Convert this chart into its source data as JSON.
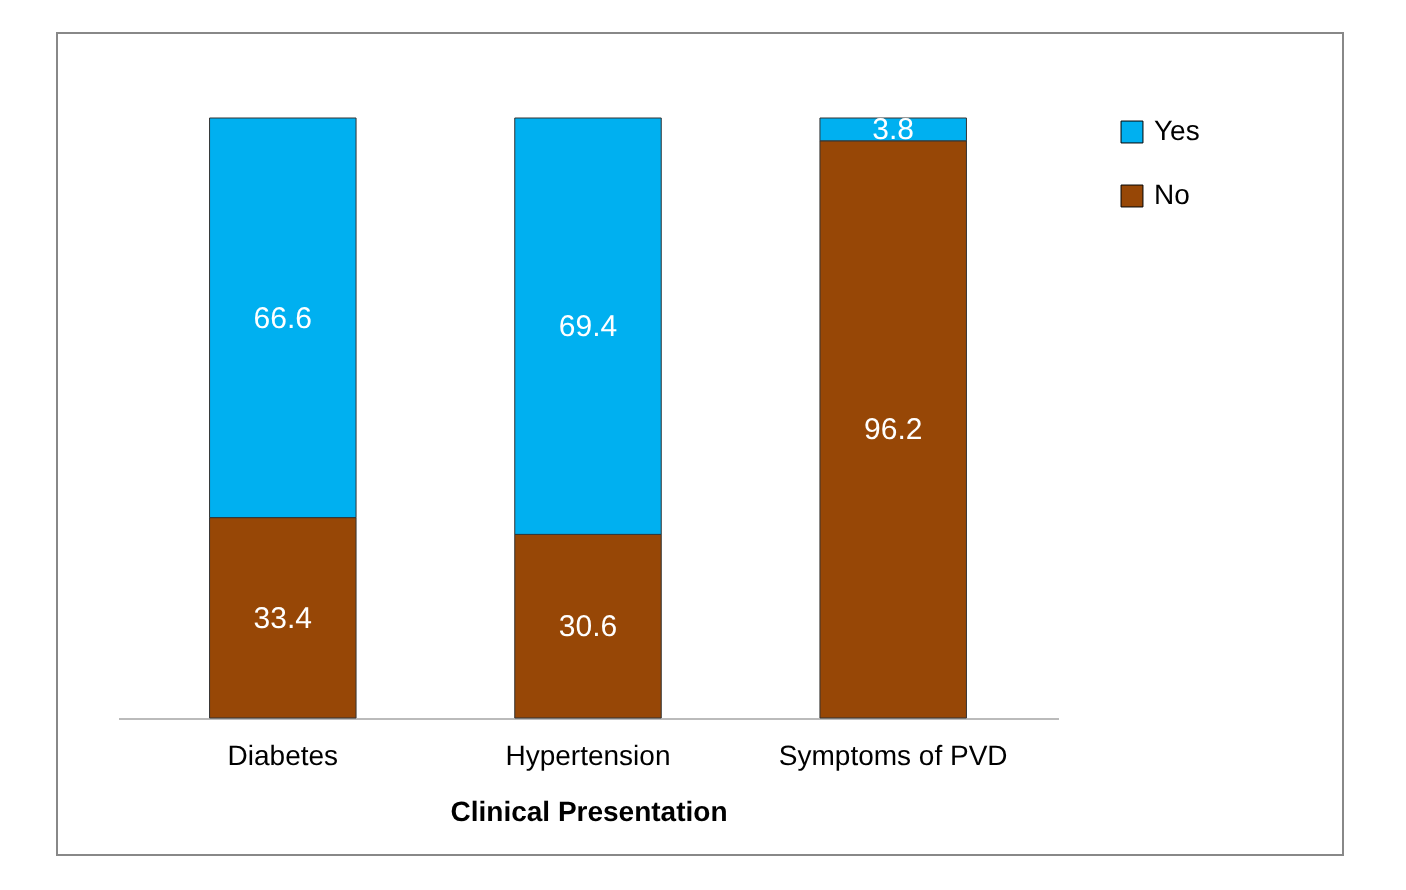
{
  "chart_data": {
    "type": "bar",
    "stacked": true,
    "categories": [
      "Diabetes",
      "Hypertension",
      "Symptoms of PVD"
    ],
    "xlabel": "Clinical Presentation",
    "data_labels": true,
    "legend": "right",
    "series": [
      {
        "name": "No",
        "color": "#974706",
        "values": [
          33.4,
          30.6,
          96.2
        ]
      },
      {
        "name": "Yes",
        "color": "#00b0f0",
        "values": [
          66.6,
          69.4,
          3.8
        ]
      }
    ]
  }
}
